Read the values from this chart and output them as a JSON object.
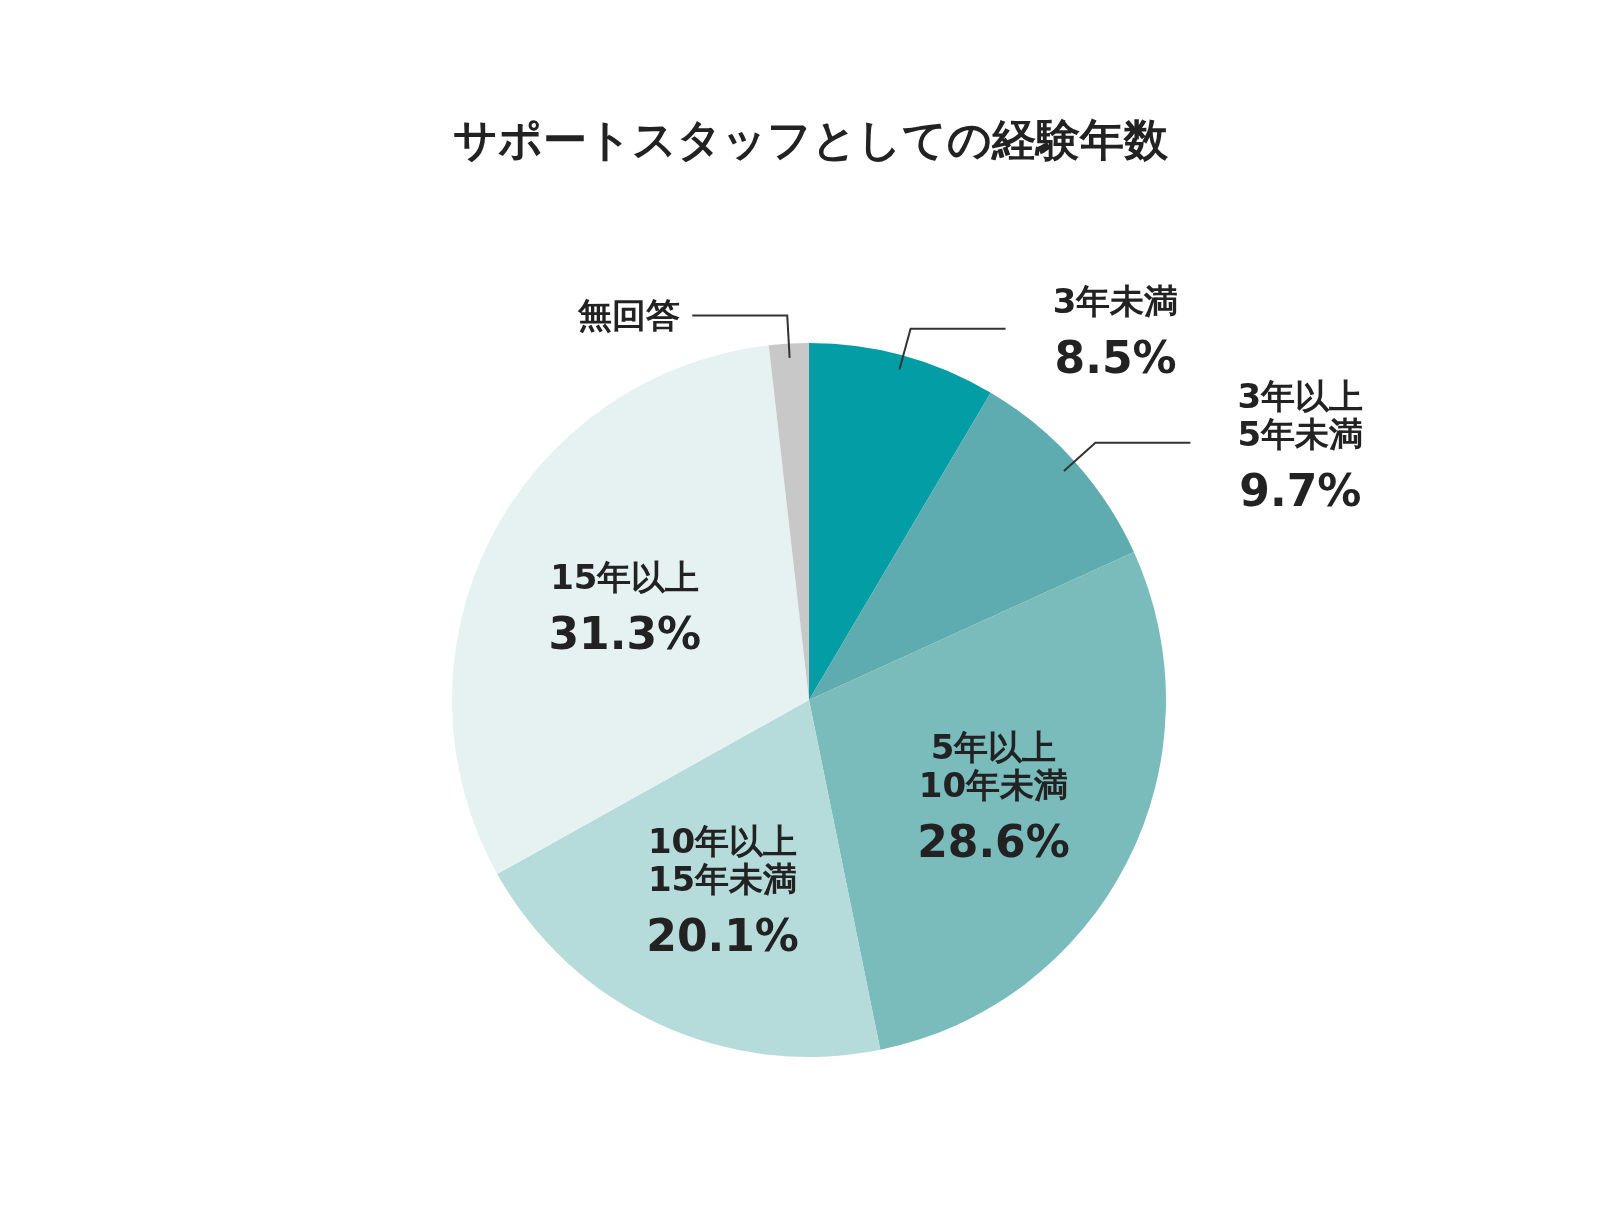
{
  "chart_data": {
    "type": "pie",
    "title": "サポートスタッフとしての経験年数",
    "categories": [
      "3年未満",
      "3年以上\n5年未満",
      "5年以上\n10年未満",
      "10年以上\n15年未満",
      "15年以上",
      "無回答"
    ],
    "values": [
      8.5,
      9.7,
      28.6,
      20.1,
      31.3,
      1.8
    ],
    "value_labels": [
      "8.5%",
      "9.7%",
      "28.6%",
      "20.1%",
      "31.3%",
      null
    ],
    "colors": [
      "#029da5",
      "#5eabb0",
      "#7abbbc",
      "#b6dbdb",
      "#e6f2f2",
      "#c8c8c8"
    ]
  }
}
